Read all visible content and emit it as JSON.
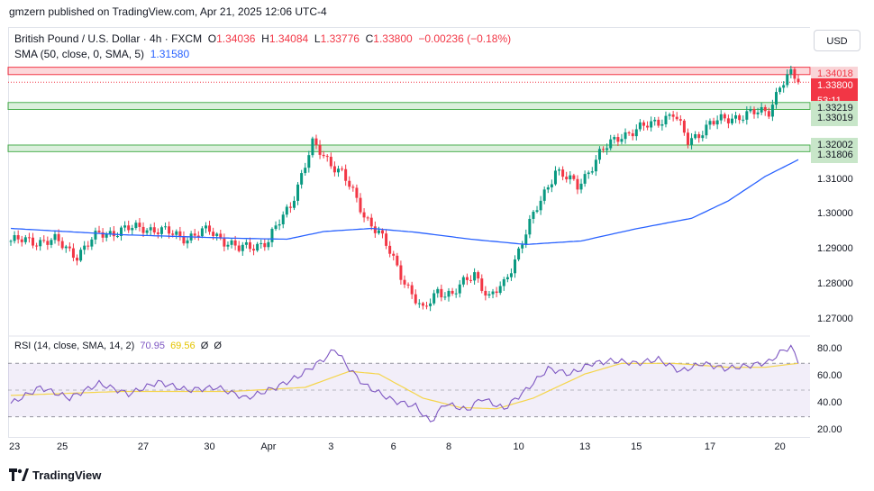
{
  "header": {
    "published_line": "gmzern published on TradingView.com, Apr 21, 2025 12:06 UTC-4"
  },
  "legend": {
    "symbol": "British Pound / U.S. Dollar · 4h · FXCM",
    "open_label": "O",
    "open_value": "1.34036",
    "high_label": "H",
    "high_value": "1.34084",
    "low_label": "L",
    "low_value": "1.33776",
    "close_label": "C",
    "close_value": "1.33800",
    "change_value": "−0.00236 (−0.18%)",
    "sma_label": "SMA (50, close, 0, SMA, 5)",
    "sma_value": "1.31580",
    "rsi_label": "RSI (14, close, SMA, 14, 2)",
    "rsi_value": "70.95",
    "rsi_ma_value": "69.56",
    "rsi_extra1": "Ø",
    "rsi_extra2": "Ø"
  },
  "scale": {
    "currency": "USD"
  },
  "price_tags": [
    {
      "label": "1.34018",
      "bg": "#f9d4d7",
      "fg": "#f23645"
    },
    {
      "label": "1.33800",
      "bg": "#f23645",
      "fg": "#ffffff"
    },
    {
      "label": "53:11",
      "bg": "#f23645",
      "fg": "#ffffff"
    },
    {
      "label": "1.33219",
      "bg": "#c8e6c9",
      "fg": "#131722"
    },
    {
      "label": "1.33019",
      "bg": "#c8e6c9",
      "fg": "#131722"
    },
    {
      "label": "1.32002",
      "bg": "#c8e6c9",
      "fg": "#131722"
    },
    {
      "label": "1.31806",
      "bg": "#c8e6c9",
      "fg": "#131722"
    }
  ],
  "footer": {
    "brand": "TradingView"
  },
  "chart_data": {
    "type": "candlestick",
    "price_axis": {
      "ticks": [
        "1.31000",
        "1.30000",
        "1.29000",
        "1.28000",
        "1.27000"
      ],
      "ylim": [
        1.2655,
        1.3435
      ]
    },
    "rsi_axis": {
      "ticks": [
        "80.00",
        "60.00",
        "40.00",
        "20.00"
      ],
      "ylim": [
        17,
        87
      ],
      "band": [
        30,
        70
      ],
      "midline": 50
    },
    "x_labels": [
      "23",
      "25",
      "27",
      "30",
      "Apr",
      "3",
      "6",
      "8",
      "10",
      "13",
      "15",
      "17",
      "20"
    ],
    "zones": [
      {
        "name": "resistance",
        "from": 1.3402,
        "to": 1.3423,
        "color": "#f23645"
      },
      {
        "name": "support-upper",
        "from": 1.3302,
        "to": 1.3322,
        "color": "#4caf50"
      },
      {
        "name": "support-lower",
        "from": 1.3181,
        "to": 1.32,
        "color": "#4caf50"
      }
    ],
    "last_price": 1.338,
    "key_points": [
      {
        "i": 0,
        "p": 1.2925
      },
      {
        "i": 12,
        "p": 1.2925
      },
      {
        "i": 18,
        "p": 1.2885
      },
      {
        "i": 24,
        "p": 1.2945
      },
      {
        "i": 36,
        "p": 1.2965
      },
      {
        "i": 48,
        "p": 1.2935
      },
      {
        "i": 54,
        "p": 1.2955
      },
      {
        "i": 62,
        "p": 1.29
      },
      {
        "i": 70,
        "p": 1.2925
      },
      {
        "i": 76,
        "p": 1.303
      },
      {
        "i": 82,
        "p": 1.32
      },
      {
        "i": 90,
        "p": 1.312
      },
      {
        "i": 96,
        "p": 1.3
      },
      {
        "i": 100,
        "p": 1.295
      },
      {
        "i": 106,
        "p": 1.283
      },
      {
        "i": 112,
        "p": 1.272
      },
      {
        "i": 116,
        "p": 1.2785
      },
      {
        "i": 120,
        "p": 1.277
      },
      {
        "i": 126,
        "p": 1.2835
      },
      {
        "i": 130,
        "p": 1.276
      },
      {
        "i": 134,
        "p": 1.28
      },
      {
        "i": 140,
        "p": 1.295
      },
      {
        "i": 148,
        "p": 1.313
      },
      {
        "i": 154,
        "p": 1.308
      },
      {
        "i": 160,
        "p": 1.3175
      },
      {
        "i": 166,
        "p": 1.323
      },
      {
        "i": 172,
        "p": 1.325
      },
      {
        "i": 180,
        "p": 1.329
      },
      {
        "i": 184,
        "p": 1.321
      },
      {
        "i": 190,
        "p": 1.326
      },
      {
        "i": 196,
        "p": 1.328
      },
      {
        "i": 202,
        "p": 1.329
      },
      {
        "i": 206,
        "p": 1.33
      },
      {
        "i": 209,
        "p": 1.337
      },
      {
        "i": 212,
        "p": 1.34
      },
      {
        "i": 214,
        "p": 1.3385
      }
    ],
    "sma": [
      {
        "i": 0,
        "p": 1.2961
      },
      {
        "i": 30,
        "p": 1.2943
      },
      {
        "i": 60,
        "p": 1.2933
      },
      {
        "i": 75,
        "p": 1.293
      },
      {
        "i": 85,
        "p": 1.2952
      },
      {
        "i": 98,
        "p": 1.2961
      },
      {
        "i": 110,
        "p": 1.295
      },
      {
        "i": 125,
        "p": 1.293
      },
      {
        "i": 140,
        "p": 1.2915
      },
      {
        "i": 155,
        "p": 1.2925
      },
      {
        "i": 170,
        "p": 1.296
      },
      {
        "i": 185,
        "p": 1.299
      },
      {
        "i": 195,
        "p": 1.304
      },
      {
        "i": 205,
        "p": 1.311
      },
      {
        "i": 214,
        "p": 1.3158
      }
    ],
    "rsi": [
      {
        "i": 0,
        "p": 40
      },
      {
        "i": 8,
        "p": 52
      },
      {
        "i": 16,
        "p": 44
      },
      {
        "i": 24,
        "p": 55
      },
      {
        "i": 32,
        "p": 47
      },
      {
        "i": 40,
        "p": 56
      },
      {
        "i": 48,
        "p": 50
      },
      {
        "i": 56,
        "p": 52
      },
      {
        "i": 64,
        "p": 44
      },
      {
        "i": 72,
        "p": 52
      },
      {
        "i": 78,
        "p": 60
      },
      {
        "i": 86,
        "p": 75
      },
      {
        "i": 88,
        "p": 81
      },
      {
        "i": 92,
        "p": 66
      },
      {
        "i": 96,
        "p": 54
      },
      {
        "i": 100,
        "p": 48
      },
      {
        "i": 104,
        "p": 42
      },
      {
        "i": 110,
        "p": 38
      },
      {
        "i": 114,
        "p": 26
      },
      {
        "i": 118,
        "p": 40
      },
      {
        "i": 124,
        "p": 35
      },
      {
        "i": 128,
        "p": 44
      },
      {
        "i": 134,
        "p": 36
      },
      {
        "i": 140,
        "p": 50
      },
      {
        "i": 146,
        "p": 66
      },
      {
        "i": 152,
        "p": 62
      },
      {
        "i": 158,
        "p": 70
      },
      {
        "i": 164,
        "p": 72
      },
      {
        "i": 170,
        "p": 70
      },
      {
        "i": 176,
        "p": 73
      },
      {
        "i": 182,
        "p": 64
      },
      {
        "i": 188,
        "p": 70
      },
      {
        "i": 194,
        "p": 66
      },
      {
        "i": 200,
        "p": 68
      },
      {
        "i": 206,
        "p": 71
      },
      {
        "i": 210,
        "p": 80
      },
      {
        "i": 212,
        "p": 82
      },
      {
        "i": 214,
        "p": 72
      }
    ],
    "rsi_ma": [
      {
        "i": 0,
        "p": 46
      },
      {
        "i": 30,
        "p": 49
      },
      {
        "i": 60,
        "p": 49
      },
      {
        "i": 80,
        "p": 52
      },
      {
        "i": 92,
        "p": 64
      },
      {
        "i": 100,
        "p": 62
      },
      {
        "i": 112,
        "p": 44
      },
      {
        "i": 122,
        "p": 37
      },
      {
        "i": 132,
        "p": 36
      },
      {
        "i": 142,
        "p": 44
      },
      {
        "i": 156,
        "p": 62
      },
      {
        "i": 166,
        "p": 70
      },
      {
        "i": 180,
        "p": 70
      },
      {
        "i": 195,
        "p": 67
      },
      {
        "i": 205,
        "p": 67
      },
      {
        "i": 214,
        "p": 70
      }
    ]
  }
}
